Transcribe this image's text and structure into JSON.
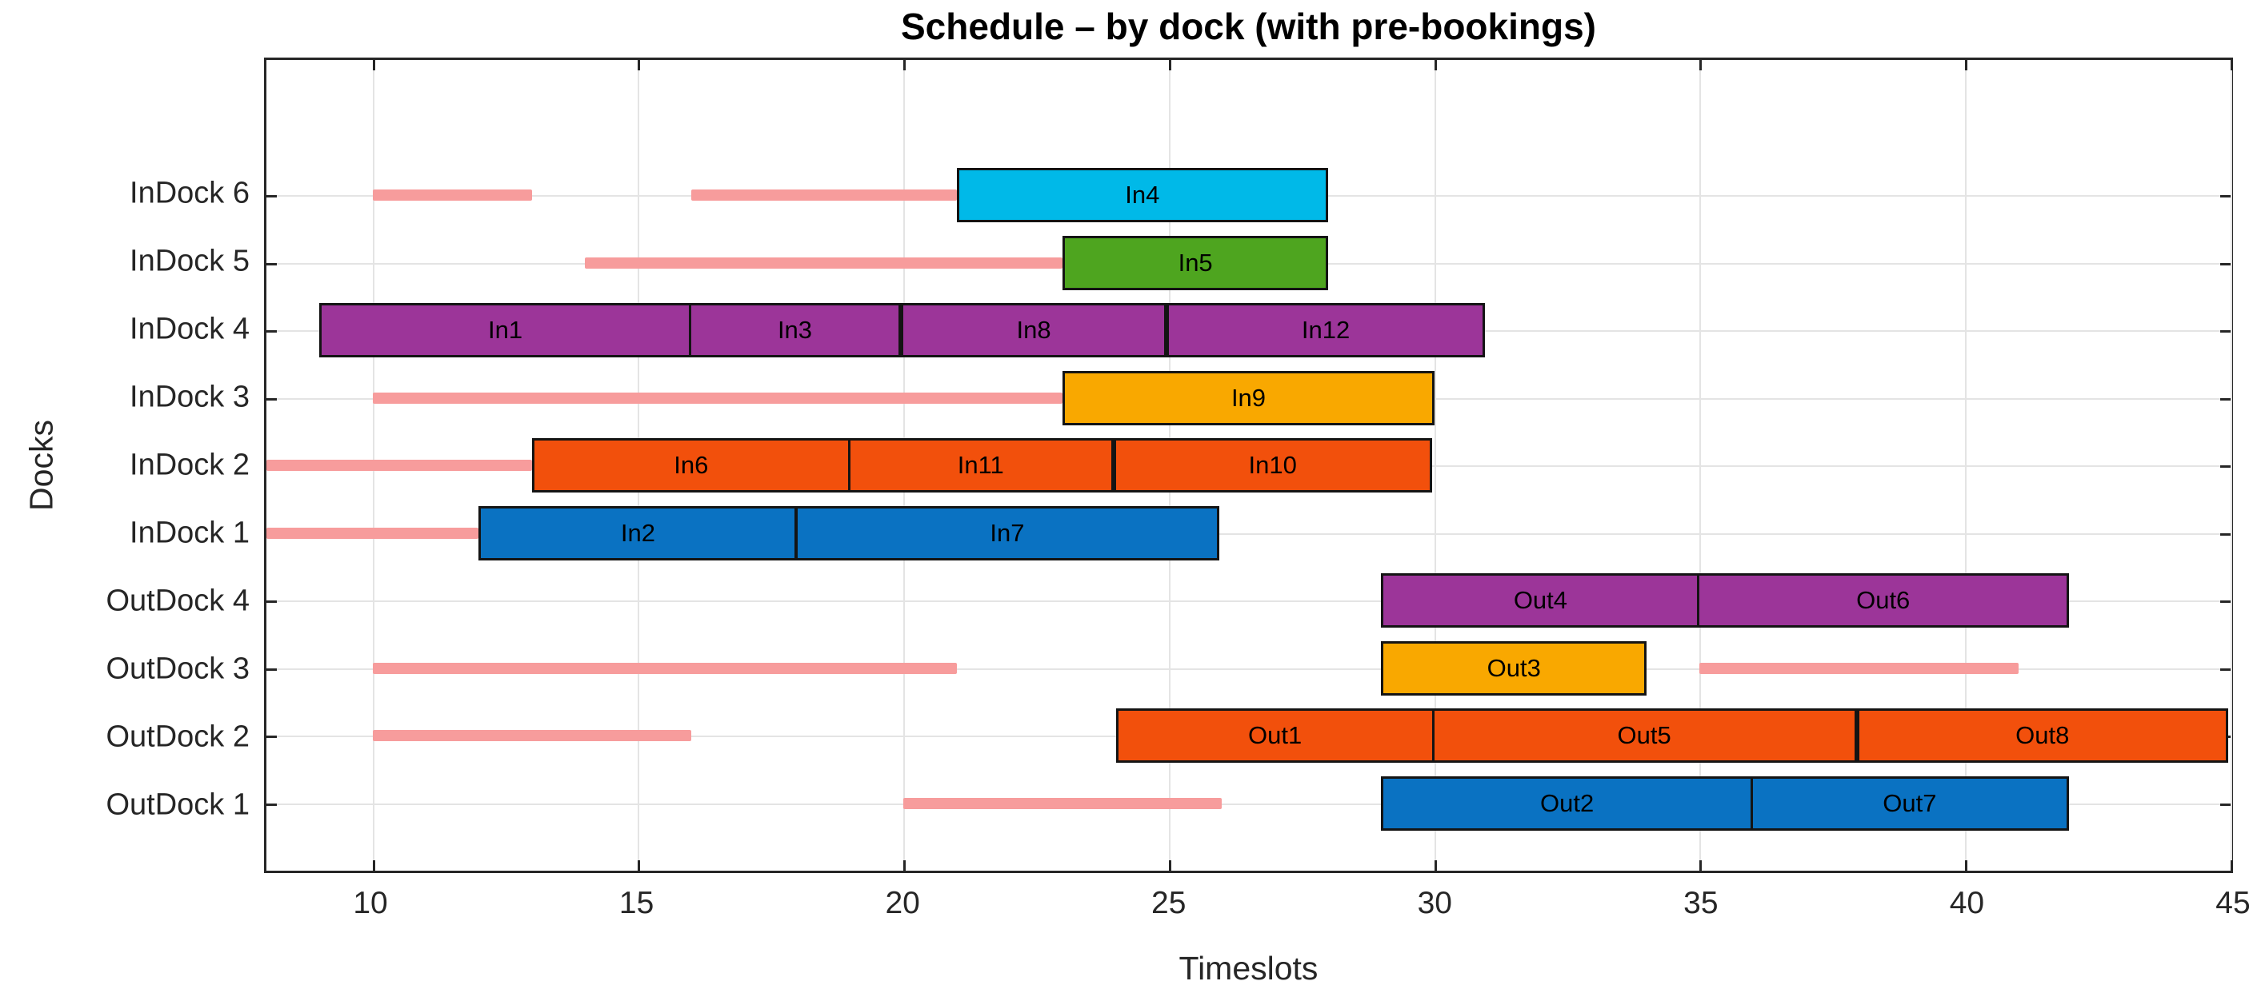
{
  "title": "Schedule – by dock (with pre-bookings)",
  "xlabel": "Timeslots",
  "ylabel": "Docks",
  "palette": {
    "blue": "#0a72c2",
    "orange": "#f2500c",
    "amber": "#f9a800",
    "purple": "#9c3599",
    "green": "#4ea51f",
    "cyan": "#00b9e8",
    "prebooking_pink": "#f79c9c",
    "grid": "#e4e4e4",
    "axis": "#262626"
  },
  "chart_data": {
    "type": "bar",
    "subtype": "gantt",
    "title": "Schedule – by dock (with pre-bookings)",
    "xlabel": "Timeslots",
    "ylabel": "Docks",
    "xlim": [
      8,
      45
    ],
    "ylim": [
      0,
      12
    ],
    "x_ticks": [
      10,
      15,
      20,
      25,
      30,
      35,
      40,
      45
    ],
    "grid": true,
    "rows": [
      {
        "label": "InDock 6",
        "y": 10
      },
      {
        "label": "InDock 5",
        "y": 9
      },
      {
        "label": "InDock 4",
        "y": 8
      },
      {
        "label": "InDock 3",
        "y": 7
      },
      {
        "label": "InDock 2",
        "y": 6
      },
      {
        "label": "InDock 1",
        "y": 5
      },
      {
        "label": "OutDock 4",
        "y": 4
      },
      {
        "label": "OutDock 3",
        "y": 3
      },
      {
        "label": "OutDock 2",
        "y": 2
      },
      {
        "label": "OutDock 1",
        "y": 1
      }
    ],
    "bars": [
      {
        "row": "InDock 6",
        "label": "In4",
        "start": 21,
        "end": 28,
        "color": "cyan"
      },
      {
        "row": "InDock 5",
        "label": "In5",
        "start": 23,
        "end": 28,
        "color": "green"
      },
      {
        "row": "InDock 4",
        "label": "In1",
        "start": 9,
        "end": 16,
        "color": "purple"
      },
      {
        "row": "InDock 4",
        "label": "In3",
        "start": 16,
        "end": 20,
        "color": "purple"
      },
      {
        "row": "InDock 4",
        "label": "In8",
        "start": 20,
        "end": 25,
        "color": "purple"
      },
      {
        "row": "InDock 4",
        "label": "In12",
        "start": 25,
        "end": 31,
        "color": "purple"
      },
      {
        "row": "InDock 3",
        "label": "In9",
        "start": 23,
        "end": 30,
        "color": "amber"
      },
      {
        "row": "InDock 2",
        "label": "In6",
        "start": 13,
        "end": 19,
        "color": "orange"
      },
      {
        "row": "InDock 2",
        "label": "In11",
        "start": 19,
        "end": 24,
        "color": "orange"
      },
      {
        "row": "InDock 2",
        "label": "In10",
        "start": 24,
        "end": 30,
        "color": "orange"
      },
      {
        "row": "InDock 1",
        "label": "In2",
        "start": 12,
        "end": 18,
        "color": "blue"
      },
      {
        "row": "InDock 1",
        "label": "In7",
        "start": 18,
        "end": 26,
        "color": "blue"
      },
      {
        "row": "OutDock 4",
        "label": "Out4",
        "start": 29,
        "end": 35,
        "color": "purple"
      },
      {
        "row": "OutDock 4",
        "label": "Out6",
        "start": 35,
        "end": 42,
        "color": "purple"
      },
      {
        "row": "OutDock 3",
        "label": "Out3",
        "start": 29,
        "end": 34,
        "color": "amber"
      },
      {
        "row": "OutDock 2",
        "label": "Out1",
        "start": 24,
        "end": 30,
        "color": "orange"
      },
      {
        "row": "OutDock 2",
        "label": "Out5",
        "start": 30,
        "end": 38,
        "color": "orange"
      },
      {
        "row": "OutDock 2",
        "label": "Out8",
        "start": 38,
        "end": 45,
        "color": "orange"
      },
      {
        "row": "OutDock 1",
        "label": "Out2",
        "start": 29,
        "end": 36,
        "color": "blue"
      },
      {
        "row": "OutDock 1",
        "label": "Out7",
        "start": 36,
        "end": 42,
        "color": "blue"
      }
    ],
    "prebookings": [
      {
        "row": "InDock 6",
        "start": 10,
        "end": 13
      },
      {
        "row": "InDock 6",
        "start": 16,
        "end": 21
      },
      {
        "row": "InDock 5",
        "start": 14,
        "end": 23
      },
      {
        "row": "InDock 3",
        "start": 10,
        "end": 23
      },
      {
        "row": "InDock 2",
        "start": 8,
        "end": 13
      },
      {
        "row": "InDock 1",
        "start": 8,
        "end": 12
      },
      {
        "row": "OutDock 3",
        "start": 10,
        "end": 21
      },
      {
        "row": "OutDock 3",
        "start": 35,
        "end": 41
      },
      {
        "row": "OutDock 2",
        "start": 10,
        "end": 16
      },
      {
        "row": "OutDock 1",
        "start": 20,
        "end": 26
      }
    ]
  }
}
